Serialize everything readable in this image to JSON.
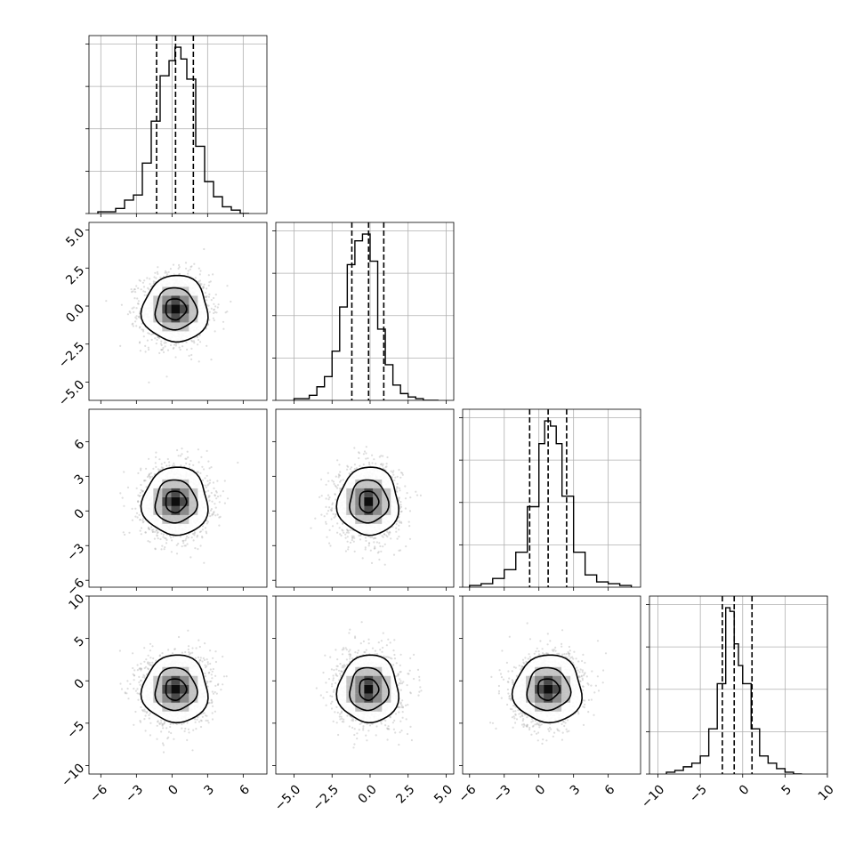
{
  "chart_data": {
    "type": "corner",
    "description_hidden": false,
    "grid": true,
    "colors": {
      "line": "#000000",
      "grid": "#b0b0b0",
      "points": "#b4b4b4",
      "density": "#6b6b6b"
    },
    "variables": [
      {
        "range": [
          -7,
          8
        ],
        "ticks": [
          -6,
          -3,
          0,
          3,
          6
        ],
        "tick_labels": [
          "−6",
          "−3",
          "0",
          "3",
          "6"
        ],
        "quantiles": [
          -1.3,
          0.3,
          1.8
        ],
        "hist": {
          "edges": [
            -6.25,
            -5.5,
            -4.75,
            -4.0,
            -3.25,
            -2.5,
            -1.75,
            -1.0,
            -0.25,
            0.25,
            0.75,
            1.25,
            2.0,
            2.75,
            3.5,
            4.25,
            5.0,
            5.75,
            6.5
          ],
          "counts": [
            1,
            1,
            3,
            8,
            11,
            30,
            55,
            82,
            91,
            99,
            92,
            80,
            40,
            19,
            10,
            4,
            2,
            0
          ]
        }
      },
      {
        "range": [
          -6.2,
          5.5
        ],
        "ticks": [
          -5.0,
          -2.5,
          0.0,
          2.5,
          5.0
        ],
        "tick_labels": [
          "−5.0",
          "−2.5",
          "0.0",
          "2.5",
          "5.0"
        ],
        "quantiles": [
          -1.2,
          -0.1,
          0.9
        ],
        "hist": {
          "edges": [
            -5.0,
            -4.5,
            -4.0,
            -3.5,
            -3.0,
            -2.5,
            -2.0,
            -1.5,
            -1.0,
            -0.5,
            0.0,
            0.5,
            1.0,
            1.5,
            2.0,
            2.5,
            3.0,
            3.5,
            4.0,
            4.5
          ],
          "counts": [
            1,
            1,
            3,
            8,
            14,
            29,
            55,
            80,
            94,
            98,
            82,
            42,
            21,
            9,
            4,
            2,
            1,
            0,
            0
          ]
        }
      },
      {
        "range": [
          -6.6,
          8.8
        ],
        "ticks": [
          -6,
          -3,
          0,
          3,
          6
        ],
        "tick_labels": [
          "−6",
          "−3",
          "0",
          "3",
          "6"
        ],
        "quantiles": [
          -0.8,
          0.8,
          2.4
        ],
        "hist": {
          "edges": [
            -6.0,
            -5.0,
            -4.0,
            -3.0,
            -2.0,
            -1.0,
            0.0,
            0.5,
            1.0,
            1.5,
            2.0,
            3.0,
            4.0,
            5.0,
            6.0,
            7.0,
            8.0
          ],
          "counts": [
            1,
            2,
            5,
            10,
            20,
            46,
            82,
            95,
            92,
            82,
            52,
            20,
            7,
            3,
            2,
            1
          ]
        }
      },
      {
        "range": [
          -11,
          10
        ],
        "ticks": [
          -10,
          -5,
          0,
          5,
          10
        ],
        "tick_labels": [
          "−10",
          "−5",
          "0",
          "5",
          "10"
        ],
        "quantiles": [
          -2.4,
          -1.0,
          1.1
        ],
        "hist": {
          "edges": [
            -9.0,
            -8.0,
            -7.0,
            -6.0,
            -5.0,
            -4.0,
            -3.0,
            -2.0,
            -1.5,
            -1.0,
            -0.5,
            0.0,
            1.0,
            2.0,
            3.0,
            4.0,
            5.0,
            6.0,
            7.0
          ],
          "counts": [
            1,
            2,
            4,
            6,
            10,
            25,
            50,
            92,
            90,
            72,
            60,
            50,
            25,
            10,
            6,
            3,
            1,
            0
          ]
        }
      }
    ],
    "pairs": [
      {
        "row": 1,
        "col": 0,
        "center": [
          0.3,
          -0.2
        ],
        "sigma": [
          1.45,
          1.15
        ],
        "rho": 0.0,
        "levels": [
          0.6,
          1.2,
          1.9
        ]
      },
      {
        "row": 2,
        "col": 0,
        "center": [
          0.3,
          0.8
        ],
        "sigma": [
          1.45,
          1.55
        ],
        "rho": 0.0,
        "levels": [
          0.6,
          1.2,
          1.9
        ]
      },
      {
        "row": 2,
        "col": 1,
        "center": [
          -0.1,
          0.8
        ],
        "sigma": [
          1.05,
          1.55
        ],
        "rho": 0.0,
        "levels": [
          0.6,
          1.2,
          1.9
        ]
      },
      {
        "row": 3,
        "col": 0,
        "center": [
          0.3,
          -1.0
        ],
        "sigma": [
          1.45,
          2.1
        ],
        "rho": 0.0,
        "levels": [
          0.6,
          1.2,
          1.9
        ]
      },
      {
        "row": 3,
        "col": 1,
        "center": [
          -0.1,
          -1.0
        ],
        "sigma": [
          1.05,
          2.1
        ],
        "rho": 0.0,
        "levels": [
          0.6,
          1.2,
          1.9
        ]
      },
      {
        "row": 3,
        "col": 2,
        "center": [
          0.8,
          -1.0
        ],
        "sigma": [
          1.55,
          2.1
        ],
        "rho": 0.1,
        "levels": [
          0.6,
          1.2,
          1.9
        ]
      }
    ]
  }
}
